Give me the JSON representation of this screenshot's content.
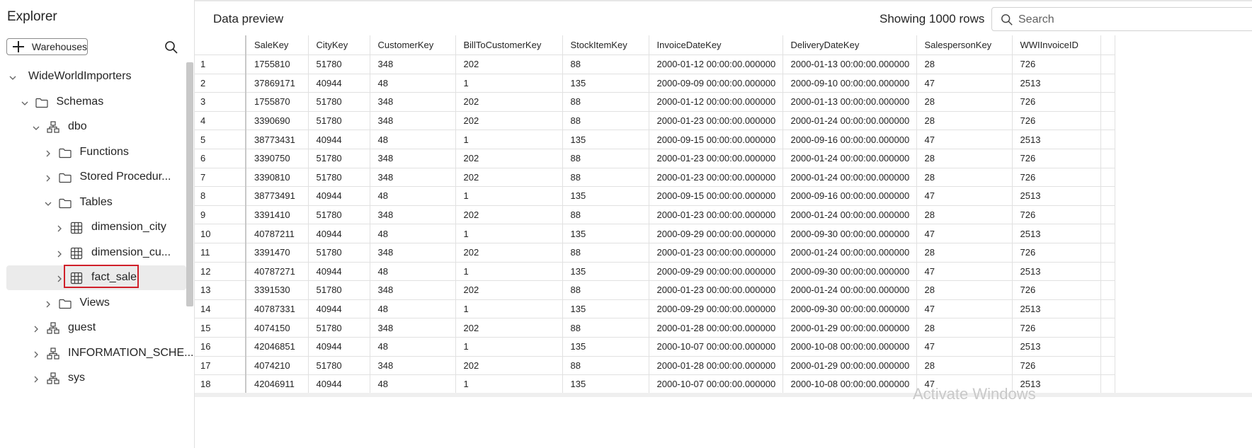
{
  "explorer": {
    "title": "Explorer",
    "warehouses_button": "Warehouses",
    "tree": [
      {
        "label": "WideWorldImporters",
        "icon": "none",
        "chevron": "down"
      },
      {
        "label": "Schemas",
        "icon": "folder-icon",
        "chevron": "down"
      },
      {
        "label": "dbo",
        "icon": "schema-icon",
        "chevron": "down"
      },
      {
        "label": "Functions",
        "icon": "folder-icon",
        "chevron": "right"
      },
      {
        "label": "Stored Procedur...",
        "icon": "folder-icon",
        "chevron": "right"
      },
      {
        "label": "Tables",
        "icon": "folder-icon",
        "chevron": "down"
      },
      {
        "label": "dimension_city",
        "icon": "table-icon",
        "chevron": "right"
      },
      {
        "label": "dimension_cu...",
        "icon": "table-icon",
        "chevron": "right"
      },
      {
        "label": "fact_sale",
        "icon": "table-icon",
        "chevron": "right",
        "selected": true
      },
      {
        "label": "Views",
        "icon": "folder-icon",
        "chevron": "right"
      },
      {
        "label": "guest",
        "icon": "schema-icon",
        "chevron": "right"
      },
      {
        "label": "INFORMATION_SCHE...",
        "icon": "schema-icon",
        "chevron": "right"
      },
      {
        "label": "sys",
        "icon": "schema-icon",
        "chevron": "right"
      }
    ]
  },
  "preview": {
    "title": "Data preview",
    "rows_label": "Showing 1000 rows",
    "search_placeholder": "Search"
  },
  "table": {
    "columns": [
      "SaleKey",
      "CityKey",
      "CustomerKey",
      "BillToCustomerKey",
      "StockItemKey",
      "InvoiceDateKey",
      "DeliveryDateKey",
      "SalespersonKey",
      "WWIInvoiceID"
    ],
    "rows": [
      [
        "1",
        "1755810",
        "51780",
        "348",
        "202",
        "88",
        "2000-01-12 00:00:00.000000",
        "2000-01-13 00:00:00.000000",
        "28",
        "726"
      ],
      [
        "2",
        "37869171",
        "40944",
        "48",
        "1",
        "135",
        "2000-09-09 00:00:00.000000",
        "2000-09-10 00:00:00.000000",
        "47",
        "2513"
      ],
      [
        "3",
        "1755870",
        "51780",
        "348",
        "202",
        "88",
        "2000-01-12 00:00:00.000000",
        "2000-01-13 00:00:00.000000",
        "28",
        "726"
      ],
      [
        "4",
        "3390690",
        "51780",
        "348",
        "202",
        "88",
        "2000-01-23 00:00:00.000000",
        "2000-01-24 00:00:00.000000",
        "28",
        "726"
      ],
      [
        "5",
        "38773431",
        "40944",
        "48",
        "1",
        "135",
        "2000-09-15 00:00:00.000000",
        "2000-09-16 00:00:00.000000",
        "47",
        "2513"
      ],
      [
        "6",
        "3390750",
        "51780",
        "348",
        "202",
        "88",
        "2000-01-23 00:00:00.000000",
        "2000-01-24 00:00:00.000000",
        "28",
        "726"
      ],
      [
        "7",
        "3390810",
        "51780",
        "348",
        "202",
        "88",
        "2000-01-23 00:00:00.000000",
        "2000-01-24 00:00:00.000000",
        "28",
        "726"
      ],
      [
        "8",
        "38773491",
        "40944",
        "48",
        "1",
        "135",
        "2000-09-15 00:00:00.000000",
        "2000-09-16 00:00:00.000000",
        "47",
        "2513"
      ],
      [
        "9",
        "3391410",
        "51780",
        "348",
        "202",
        "88",
        "2000-01-23 00:00:00.000000",
        "2000-01-24 00:00:00.000000",
        "28",
        "726"
      ],
      [
        "10",
        "40787211",
        "40944",
        "48",
        "1",
        "135",
        "2000-09-29 00:00:00.000000",
        "2000-09-30 00:00:00.000000",
        "47",
        "2513"
      ],
      [
        "11",
        "3391470",
        "51780",
        "348",
        "202",
        "88",
        "2000-01-23 00:00:00.000000",
        "2000-01-24 00:00:00.000000",
        "28",
        "726"
      ],
      [
        "12",
        "40787271",
        "40944",
        "48",
        "1",
        "135",
        "2000-09-29 00:00:00.000000",
        "2000-09-30 00:00:00.000000",
        "47",
        "2513"
      ],
      [
        "13",
        "3391530",
        "51780",
        "348",
        "202",
        "88",
        "2000-01-23 00:00:00.000000",
        "2000-01-24 00:00:00.000000",
        "28",
        "726"
      ],
      [
        "14",
        "40787331",
        "40944",
        "48",
        "1",
        "135",
        "2000-09-29 00:00:00.000000",
        "2000-09-30 00:00:00.000000",
        "47",
        "2513"
      ],
      [
        "15",
        "4074150",
        "51780",
        "348",
        "202",
        "88",
        "2000-01-28 00:00:00.000000",
        "2000-01-29 00:00:00.000000",
        "28",
        "726"
      ],
      [
        "16",
        "42046851",
        "40944",
        "48",
        "1",
        "135",
        "2000-10-07 00:00:00.000000",
        "2000-10-08 00:00:00.000000",
        "47",
        "2513"
      ],
      [
        "17",
        "4074210",
        "51780",
        "348",
        "202",
        "88",
        "2000-01-28 00:00:00.000000",
        "2000-01-29 00:00:00.000000",
        "28",
        "726"
      ],
      [
        "18",
        "42046911",
        "40944",
        "48",
        "1",
        "135",
        "2000-10-07 00:00:00.000000",
        "2000-10-08 00:00:00.000000",
        "47",
        "2513"
      ]
    ]
  },
  "watermark": "Activate Windows",
  "colors": {
    "highlight_border": "#d0202a",
    "selected_row": "#ebebeb",
    "grid_lines": "#e1e1e1"
  }
}
